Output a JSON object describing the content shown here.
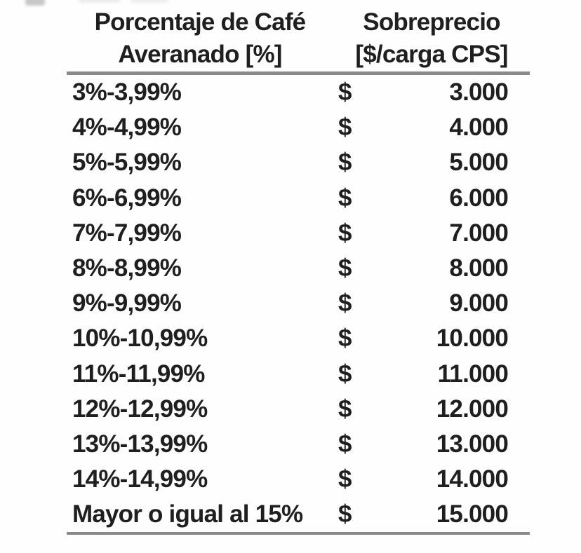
{
  "colors": {
    "text": "#1f1f1f",
    "rule": "#8a8a8a",
    "background": "#fefefe"
  },
  "table": {
    "columns": [
      {
        "title_lines": [
          "Porcentaje de Café",
          "Averanado [%]"
        ]
      },
      {
        "title_lines": [
          "Sobreprecio",
          "[$/carga CPS]"
        ]
      }
    ],
    "rows": [
      {
        "range": "3%-3,99%",
        "currency": "$",
        "value": "3.000"
      },
      {
        "range": "4%-4,99%",
        "currency": "$",
        "value": "4.000"
      },
      {
        "range": "5%-5,99%",
        "currency": "$",
        "value": "5.000"
      },
      {
        "range": "6%-6,99%",
        "currency": "$",
        "value": "6.000"
      },
      {
        "range": "7%-7,99%",
        "currency": "$",
        "value": "7.000"
      },
      {
        "range": "8%-8,99%",
        "currency": "$",
        "value": "8.000"
      },
      {
        "range": "9%-9,99%",
        "currency": "$",
        "value": "9.000"
      },
      {
        "range": "10%-10,99%",
        "currency": "$",
        "value": "10.000"
      },
      {
        "range": "11%-11,99%",
        "currency": "$",
        "value": "11.000"
      },
      {
        "range": "12%-12,99%",
        "currency": "$",
        "value": "12.000"
      },
      {
        "range": "13%-13,99%",
        "currency": "$",
        "value": "13.000"
      },
      {
        "range": "14%-14,99%",
        "currency": "$",
        "value": "14.000"
      },
      {
        "range": "Mayor o igual al 15%",
        "currency": "$",
        "value": "15.000"
      }
    ]
  }
}
